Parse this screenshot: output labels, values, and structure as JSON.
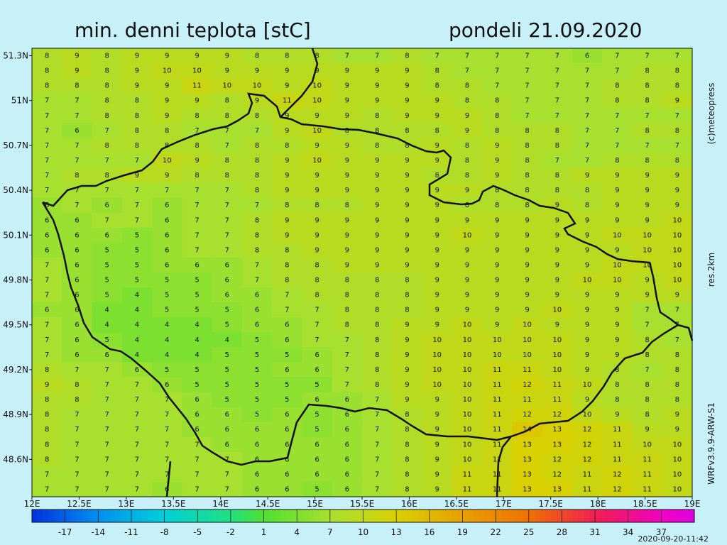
{
  "header": {
    "title": "min. denni teplota [stC]",
    "date": "pondeli 21.09.2020"
  },
  "side": {
    "copyright": "(c)meteopress",
    "resolution": "res.2km",
    "model": "WRFv3.9.9-ARW-S1"
  },
  "footer": {
    "timestamp": "2020-09-20-11:42"
  },
  "map": {
    "lon_lim": [
      12,
      19
    ],
    "lat_lim": [
      48.35,
      51.35
    ],
    "lon_ticks": [
      {
        "value": 12,
        "label": "12E"
      },
      {
        "value": 12.5,
        "label": "12.5E"
      },
      {
        "value": 13,
        "label": "13E"
      },
      {
        "value": 13.5,
        "label": "13.5E"
      },
      {
        "value": 14,
        "label": "14E"
      },
      {
        "value": 14.5,
        "label": "14.5E"
      },
      {
        "value": 15,
        "label": "15E"
      },
      {
        "value": 15.5,
        "label": "15.5E"
      },
      {
        "value": 16,
        "label": "16E"
      },
      {
        "value": 16.5,
        "label": "16.5E"
      },
      {
        "value": 17,
        "label": "17E"
      },
      {
        "value": 17.5,
        "label": "17.5E"
      },
      {
        "value": 18,
        "label": "18E"
      },
      {
        "value": 18.5,
        "label": "18.5E"
      },
      {
        "value": 19,
        "label": "19E"
      }
    ],
    "lat_ticks": [
      {
        "value": 51.3,
        "label": "51.3N"
      },
      {
        "value": 51,
        "label": "51N"
      },
      {
        "value": 50.7,
        "label": "50.7N"
      },
      {
        "value": 50.4,
        "label": "50.4N"
      },
      {
        "value": 50.1,
        "label": "50.1N"
      },
      {
        "value": 49.8,
        "label": "49.8N"
      },
      {
        "value": 49.5,
        "label": "49.5N"
      },
      {
        "value": 49.2,
        "label": "49.2N"
      },
      {
        "value": 48.9,
        "label": "48.9N"
      },
      {
        "value": 48.6,
        "label": "48.6N"
      }
    ],
    "grid": [
      [
        8,
        9,
        8,
        9,
        9,
        9,
        9,
        8,
        8,
        8,
        7,
        7,
        8,
        7,
        7,
        7,
        7,
        7,
        6,
        7,
        7,
        7
      ],
      [
        8,
        9,
        8,
        9,
        10,
        10,
        9,
        9,
        9,
        9,
        9,
        9,
        9,
        8,
        7,
        7,
        7,
        7,
        7,
        7,
        8,
        8
      ],
      [
        8,
        8,
        8,
        9,
        9,
        11,
        10,
        10,
        9,
        10,
        9,
        9,
        9,
        8,
        8,
        7,
        7,
        7,
        7,
        8,
        8,
        8
      ],
      [
        7,
        7,
        8,
        8,
        9,
        9,
        8,
        9,
        11,
        10,
        9,
        9,
        9,
        9,
        8,
        8,
        7,
        7,
        7,
        8,
        8,
        9
      ],
      [
        7,
        7,
        8,
        8,
        9,
        8,
        8,
        8,
        9,
        9,
        9,
        8,
        9,
        9,
        9,
        8,
        7,
        7,
        7,
        7,
        7,
        7
      ],
      [
        7,
        6,
        7,
        8,
        8,
        7,
        7,
        7,
        9,
        10,
        8,
        8,
        8,
        8,
        9,
        8,
        8,
        8,
        7,
        7,
        8,
        8
      ],
      [
        7,
        7,
        8,
        8,
        8,
        8,
        7,
        8,
        8,
        9,
        9,
        8,
        8,
        9,
        8,
        9,
        8,
        8,
        7,
        7,
        7,
        7
      ],
      [
        7,
        7,
        7,
        7,
        10,
        9,
        8,
        8,
        9,
        10,
        9,
        9,
        9,
        9,
        8,
        9,
        8,
        7,
        7,
        8,
        8,
        8
      ],
      [
        7,
        8,
        8,
        9,
        9,
        8,
        8,
        8,
        9,
        9,
        9,
        9,
        9,
        8,
        8,
        9,
        8,
        8,
        9,
        9,
        9,
        9
      ],
      [
        7,
        7,
        7,
        7,
        7,
        7,
        7,
        8,
        9,
        9,
        9,
        9,
        9,
        9,
        9,
        8,
        8,
        8,
        8,
        9,
        9,
        9
      ],
      [
        6,
        7,
        6,
        7,
        6,
        7,
        7,
        7,
        8,
        8,
        8,
        9,
        9,
        9,
        8,
        8,
        8,
        9,
        8,
        9,
        9,
        9
      ],
      [
        6,
        6,
        7,
        7,
        6,
        7,
        7,
        8,
        9,
        9,
        9,
        9,
        9,
        9,
        9,
        9,
        9,
        9,
        9,
        9,
        9,
        10
      ],
      [
        6,
        6,
        6,
        5,
        6,
        7,
        7,
        8,
        9,
        9,
        9,
        9,
        9,
        9,
        10,
        9,
        9,
        9,
        9,
        10,
        10,
        10
      ],
      [
        6,
        6,
        5,
        5,
        6,
        7,
        7,
        8,
        8,
        9,
        9,
        9,
        9,
        9,
        9,
        9,
        9,
        9,
        9,
        9,
        10,
        10
      ],
      [
        7,
        6,
        5,
        5,
        6,
        6,
        6,
        7,
        8,
        8,
        9,
        9,
        9,
        9,
        9,
        9,
        9,
        9,
        9,
        10,
        10,
        10
      ],
      [
        7,
        6,
        5,
        5,
        5,
        5,
        6,
        7,
        8,
        8,
        8,
        8,
        8,
        9,
        9,
        9,
        9,
        9,
        10,
        10,
        9,
        10
      ],
      [
        7,
        6,
        5,
        4,
        5,
        5,
        6,
        6,
        7,
        8,
        8,
        8,
        8,
        9,
        9,
        9,
        9,
        9,
        9,
        9,
        9,
        9
      ],
      [
        6,
        6,
        4,
        4,
        5,
        5,
        5,
        6,
        7,
        7,
        8,
        8,
        8,
        9,
        9,
        9,
        9,
        10,
        9,
        9,
        7,
        7
      ],
      [
        7,
        6,
        4,
        4,
        4,
        4,
        5,
        6,
        6,
        7,
        8,
        8,
        9,
        9,
        10,
        9,
        10,
        9,
        9,
        9,
        7,
        7
      ],
      [
        7,
        6,
        5,
        4,
        4,
        4,
        4,
        5,
        6,
        7,
        7,
        8,
        9,
        10,
        10,
        10,
        10,
        10,
        9,
        9,
        8,
        7
      ],
      [
        7,
        6,
        6,
        4,
        4,
        4,
        5,
        5,
        5,
        6,
        7,
        8,
        9,
        10,
        10,
        10,
        10,
        10,
        9,
        9,
        8,
        8
      ],
      [
        8,
        7,
        7,
        6,
        5,
        5,
        5,
        5,
        6,
        6,
        7,
        8,
        9,
        10,
        10,
        11,
        11,
        10,
        9,
        8,
        7,
        8
      ],
      [
        9,
        8,
        7,
        7,
        6,
        5,
        5,
        5,
        5,
        5,
        7,
        8,
        9,
        10,
        10,
        11,
        12,
        11,
        10,
        8,
        8,
        8
      ],
      [
        8,
        8,
        7,
        7,
        7,
        6,
        5,
        5,
        5,
        6,
        6,
        7,
        9,
        9,
        10,
        11,
        11,
        11,
        9,
        8,
        8,
        8
      ],
      [
        8,
        7,
        7,
        7,
        7,
        6,
        6,
        5,
        6,
        5,
        6,
        7,
        8,
        9,
        10,
        11,
        12,
        12,
        10,
        9,
        8,
        9
      ],
      [
        8,
        7,
        7,
        7,
        7,
        6,
        6,
        6,
        6,
        5,
        6,
        7,
        8,
        9,
        10,
        11,
        14,
        13,
        12,
        11,
        9,
        9
      ],
      [
        8,
        7,
        7,
        7,
        7,
        7,
        6,
        6,
        6,
        6,
        6,
        7,
        8,
        9,
        10,
        11,
        13,
        13,
        12,
        11,
        10,
        10
      ],
      [
        8,
        7,
        7,
        7,
        7,
        7,
        7,
        6,
        6,
        6,
        6,
        7,
        8,
        9,
        10,
        11,
        13,
        12,
        12,
        11,
        11,
        10
      ],
      [
        7,
        7,
        7,
        7,
        7,
        7,
        7,
        6,
        6,
        6,
        6,
        7,
        8,
        9,
        11,
        11,
        13,
        12,
        11,
        12,
        11,
        10
      ],
      [
        7,
        7,
        7,
        7,
        6,
        7,
        7,
        6,
        6,
        5,
        6,
        7,
        8,
        9,
        11,
        11,
        13,
        13,
        11,
        12,
        11,
        10
      ]
    ]
  },
  "colorbar": {
    "lim": [
      -20,
      40
    ],
    "ticks": [
      -17,
      -14,
      -11,
      -8,
      -5,
      -2,
      1,
      4,
      7,
      10,
      13,
      16,
      19,
      22,
      25,
      28,
      31,
      34,
      37
    ]
  }
}
